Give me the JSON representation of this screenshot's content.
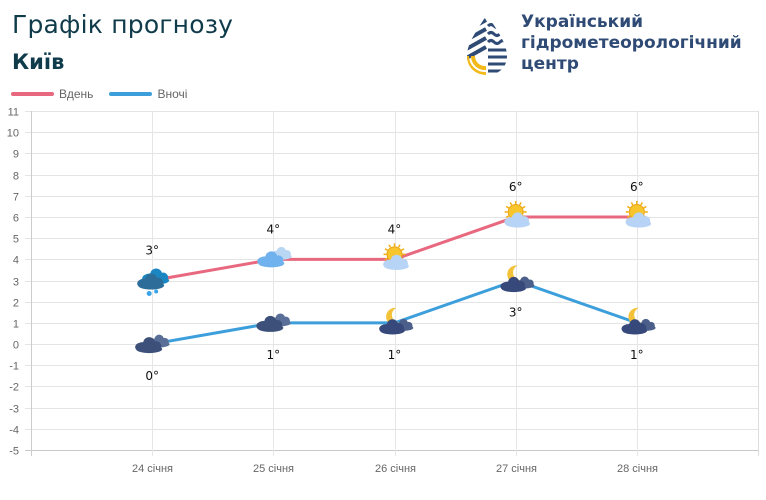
{
  "header": {
    "title": "Графік прогнозу",
    "city": "Київ"
  },
  "logo": {
    "line1": "Український",
    "line2": "гідрометеорологічний",
    "line3": "центр"
  },
  "legend": {
    "day_label": "Вдень",
    "night_label": "Вночі",
    "day_color": "#e8697f",
    "night_color": "#3c9fdc"
  },
  "chart_data": {
    "type": "line",
    "title": "Графік прогнозу",
    "subtitle": "Київ",
    "categories": [
      "24 січня",
      "25 січня",
      "26 січня",
      "27 січня",
      "28 січня"
    ],
    "series": [
      {
        "name": "Вдень",
        "values": [
          3,
          4,
          4,
          6,
          6
        ],
        "color": "#e8697f",
        "icons": [
          "snow-cloud",
          "cloudy",
          "partly-sunny",
          "partly-sunny",
          "partly-sunny"
        ]
      },
      {
        "name": "Вночі",
        "values": [
          0,
          1,
          1,
          3,
          1
        ],
        "color": "#3c9fdc",
        "icons": [
          "night-cloudy",
          "night-cloudy",
          "moon-cloud",
          "moon-cloud",
          "moon-cloud"
        ]
      }
    ],
    "point_labels": {
      "day": [
        "3°",
        "4°",
        "4°",
        "6°",
        "6°"
      ],
      "night": [
        "0°",
        "1°",
        "1°",
        "3°",
        "1°"
      ]
    },
    "xlabel": "",
    "ylabel": "",
    "ylim": [
      -5,
      11
    ],
    "yticks": [
      "11",
      "10",
      "9",
      "8",
      "7",
      "6",
      "5",
      "4",
      "3",
      "2",
      "1",
      "0",
      "-1",
      "-2",
      "-3",
      "-4",
      "-5"
    ],
    "grid": true,
    "legend_position": "top-left"
  }
}
